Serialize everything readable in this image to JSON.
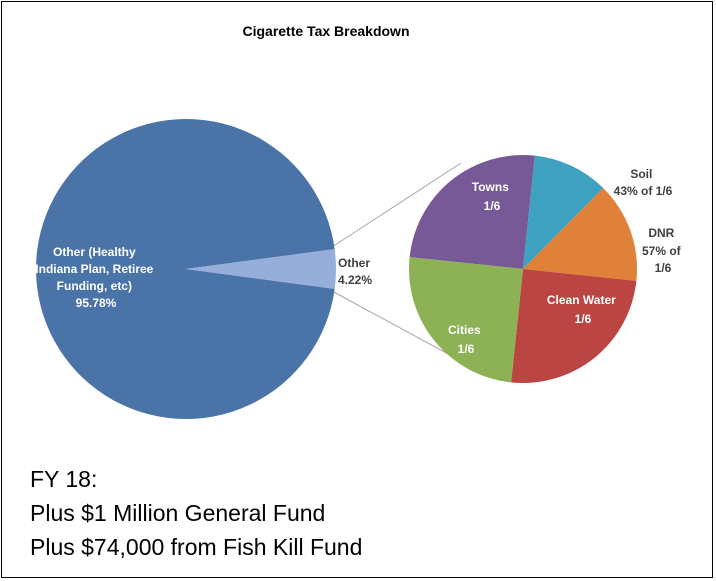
{
  "chart_data": {
    "type": "pie",
    "title": "Cigarette Tax Breakdown",
    "main_pie": {
      "slices": [
        {
          "label_lines": [
            "Other (Healthy",
            "Indiana Plan, Retiree",
            "Funding, etc)",
            "95.78%"
          ],
          "value": 95.78,
          "color": "#4A73A8"
        },
        {
          "label_lines": [
            "Other",
            "4.22%"
          ],
          "value": 4.22,
          "color": "#95AEDA"
        }
      ]
    },
    "breakdown_pie": {
      "of": "Other",
      "slices": [
        {
          "label_lines": [
            "Towns",
            "1/6"
          ],
          "value": 0.16667,
          "color": "#765996"
        },
        {
          "label_lines": [
            "Soil",
            "43% of 1/6"
          ],
          "value": 0.07167,
          "color": "#3EA1BF"
        },
        {
          "label_lines": [
            "DNR",
            "57% of",
            "1/6"
          ],
          "value": 0.095,
          "color": "#E0813A"
        },
        {
          "label_lines": [
            "Clean Water",
            "1/6"
          ],
          "value": 0.16667,
          "color": "#BA4542"
        },
        {
          "label_lines": [
            "Cities",
            "1/6"
          ],
          "value": 0.16667,
          "color": "#8DB255"
        }
      ]
    }
  },
  "notes": {
    "line1": "FY 18:",
    "line2": "Plus $1 Million General Fund",
    "line3": "Plus $74,000 from Fish Kill Fund"
  }
}
